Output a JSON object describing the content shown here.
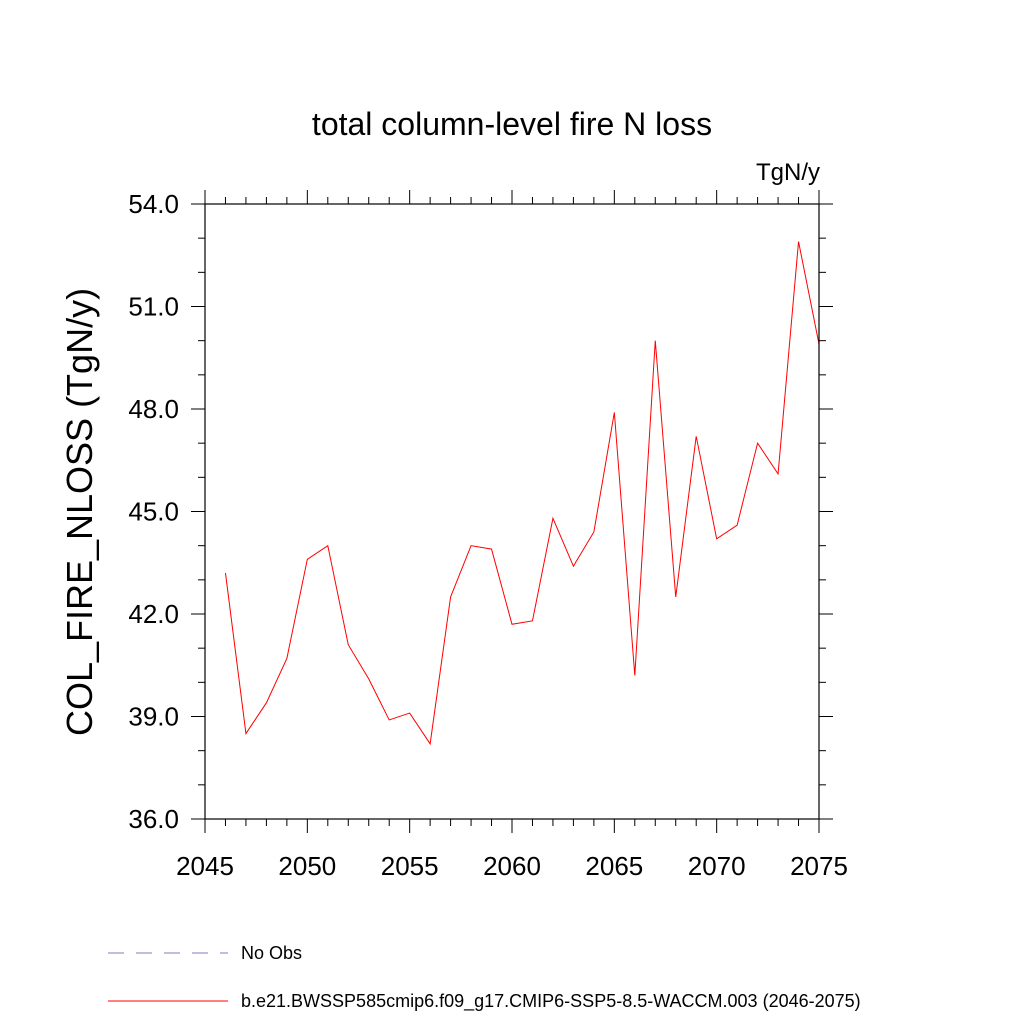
{
  "chart_data": {
    "type": "line",
    "title": "total column-level fire N loss",
    "units": "TgN/y",
    "xlabel": "",
    "ylabel": "COL_FIRE_NLOSS  (TgN/y)",
    "xlim": [
      2045,
      2075
    ],
    "ylim": [
      36.0,
      54.0
    ],
    "xticks": [
      2045,
      2050,
      2055,
      2060,
      2065,
      2070,
      2075
    ],
    "xtick_labels": [
      "2045",
      "2050",
      "2055",
      "2060",
      "2065",
      "2070",
      "2075"
    ],
    "yticks": [
      36.0,
      39.0,
      42.0,
      45.0,
      48.0,
      51.0,
      54.0
    ],
    "ytick_labels": [
      "36.0",
      "39.0",
      "42.0",
      "45.0",
      "48.0",
      "51.0",
      "54.0"
    ],
    "grid": false,
    "legend_position": "bottom-left",
    "series": [
      {
        "name": "b.e21.BWSSP585cmip6.f09_g17.CMIP6-SSP5-8.5-WACCM.003 (2046-2075)",
        "color": "#ff0000",
        "style": "solid",
        "x": [
          2046,
          2047,
          2048,
          2049,
          2050,
          2051,
          2052,
          2053,
          2054,
          2055,
          2056,
          2057,
          2058,
          2059,
          2060,
          2061,
          2062,
          2063,
          2064,
          2065,
          2066,
          2067,
          2068,
          2069,
          2070,
          2071,
          2072,
          2073,
          2074,
          2075
        ],
        "values": [
          43.2,
          38.5,
          39.4,
          40.7,
          43.6,
          44.0,
          41.1,
          40.1,
          38.9,
          39.1,
          38.2,
          42.5,
          44.0,
          43.9,
          41.7,
          41.8,
          44.8,
          43.4,
          44.4,
          47.9,
          40.2,
          50.0,
          42.5,
          47.2,
          44.2,
          44.6,
          47.0,
          46.1,
          52.9,
          49.9
        ]
      },
      {
        "name": "No Obs",
        "color": "#8878b8",
        "style": "dashed",
        "x": [],
        "values": []
      }
    ]
  }
}
